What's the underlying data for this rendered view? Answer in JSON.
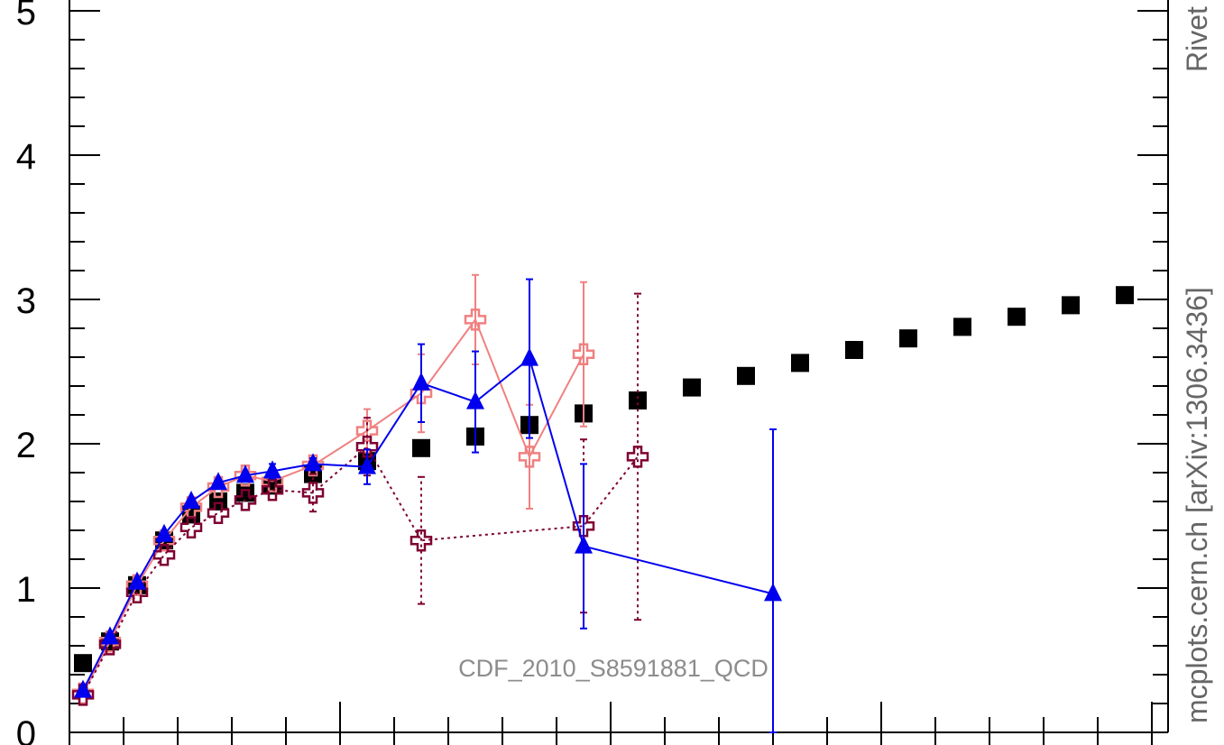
{
  "chart_data": {
    "type": "scatter",
    "annotation": "CDF_2010_S8591881_QCD",
    "side_labels": {
      "watermark": "Rivet",
      "source": "mcplots.cern.ch [arXiv:1306.3436]"
    },
    "y_ticks": [
      "0",
      "1",
      "2",
      "3",
      "4",
      "5"
    ],
    "ylim": [
      0,
      5
    ],
    "xlim": [
      0,
      40
    ],
    "grid": false,
    "series": [
      {
        "color": "#000000",
        "marker": "square",
        "line": "none",
        "points": [
          {
            "x": 0.5,
            "y": 0.48
          },
          {
            "x": 1.5,
            "y": 0.63
          },
          {
            "x": 2.5,
            "y": 1.02
          },
          {
            "x": 3.5,
            "y": 1.33
          },
          {
            "x": 4.5,
            "y": 1.51
          },
          {
            "x": 5.5,
            "y": 1.6
          },
          {
            "x": 6.5,
            "y": 1.66
          },
          {
            "x": 7.5,
            "y": 1.71
          },
          {
            "x": 9.0,
            "y": 1.79
          },
          {
            "x": 11.0,
            "y": 1.88
          },
          {
            "x": 13.0,
            "y": 1.97
          },
          {
            "x": 15.0,
            "y": 2.05
          },
          {
            "x": 17.0,
            "y": 2.13
          },
          {
            "x": 19.0,
            "y": 2.21
          },
          {
            "x": 21.0,
            "y": 2.3
          },
          {
            "x": 23.0,
            "y": 2.39
          },
          {
            "x": 25.0,
            "y": 2.47
          },
          {
            "x": 27.0,
            "y": 2.56
          },
          {
            "x": 29.0,
            "y": 2.65
          },
          {
            "x": 31.0,
            "y": 2.73
          },
          {
            "x": 33.0,
            "y": 2.81
          },
          {
            "x": 35.0,
            "y": 2.88
          },
          {
            "x": 37.0,
            "y": 2.96
          },
          {
            "x": 39.0,
            "y": 3.03
          }
        ]
      },
      {
        "color": "#f08080",
        "marker": "open-cross",
        "line": "solid",
        "points": [
          {
            "x": 0.5,
            "y": 0.27
          },
          {
            "x": 1.5,
            "y": 0.63
          },
          {
            "x": 2.5,
            "y": 1.02
          },
          {
            "x": 3.5,
            "y": 1.33
          },
          {
            "x": 4.5,
            "y": 1.56
          },
          {
            "x": 5.5,
            "y": 1.7
          },
          {
            "x": 6.5,
            "y": 1.78
          },
          {
            "x": 7.5,
            "y": 1.74
          },
          {
            "x": 9.0,
            "y": 1.85
          },
          {
            "x": 11.0,
            "y": 2.09,
            "err": 0.15
          },
          {
            "x": 13.0,
            "y": 2.35,
            "err": 0.27
          },
          {
            "x": 15.0,
            "y": 2.86,
            "err": 0.31
          },
          {
            "x": 17.0,
            "y": 1.91,
            "err": 0.36
          },
          {
            "x": 19.0,
            "y": 2.62,
            "err": 0.5
          }
        ]
      },
      {
        "color": "#7f0032",
        "marker": "open-cross",
        "line": "dotted",
        "points": [
          {
            "x": 0.5,
            "y": 0.26
          },
          {
            "x": 1.5,
            "y": 0.61
          },
          {
            "x": 2.5,
            "y": 0.97
          },
          {
            "x": 3.5,
            "y": 1.23
          },
          {
            "x": 4.5,
            "y": 1.42
          },
          {
            "x": 5.5,
            "y": 1.52
          },
          {
            "x": 6.5,
            "y": 1.61
          },
          {
            "x": 7.5,
            "y": 1.68
          },
          {
            "x": 9.0,
            "y": 1.66,
            "err": 0.13
          },
          {
            "x": 11.0,
            "y": 1.98,
            "err": 0.2
          },
          {
            "x": 13.0,
            "y": 1.33,
            "err": 0.44
          },
          {
            "x": 19.0,
            "y": 1.43,
            "err": 0.6
          },
          {
            "x": 21.0,
            "y": 1.91,
            "err": 1.13
          }
        ]
      },
      {
        "color": "#0000ee",
        "marker": "triangle",
        "line": "solid",
        "points": [
          {
            "x": 0.5,
            "y": 0.29
          },
          {
            "x": 1.5,
            "y": 0.66
          },
          {
            "x": 2.5,
            "y": 1.04
          },
          {
            "x": 3.5,
            "y": 1.37
          },
          {
            "x": 4.5,
            "y": 1.6
          },
          {
            "x": 5.5,
            "y": 1.73
          },
          {
            "x": 6.5,
            "y": 1.78
          },
          {
            "x": 7.5,
            "y": 1.81,
            "err": 0.05
          },
          {
            "x": 9.0,
            "y": 1.86,
            "err": 0.04
          },
          {
            "x": 11.0,
            "y": 1.84,
            "err": 0.12
          },
          {
            "x": 13.0,
            "y": 2.42,
            "err": 0.27
          },
          {
            "x": 15.0,
            "y": 2.29,
            "err": 0.35
          },
          {
            "x": 17.0,
            "y": 2.59,
            "err": 0.55
          },
          {
            "x": 19.0,
            "y": 1.29,
            "err": 0.57
          },
          {
            "x": 26.0,
            "y": 0.96,
            "err": 1.14
          }
        ]
      }
    ]
  }
}
